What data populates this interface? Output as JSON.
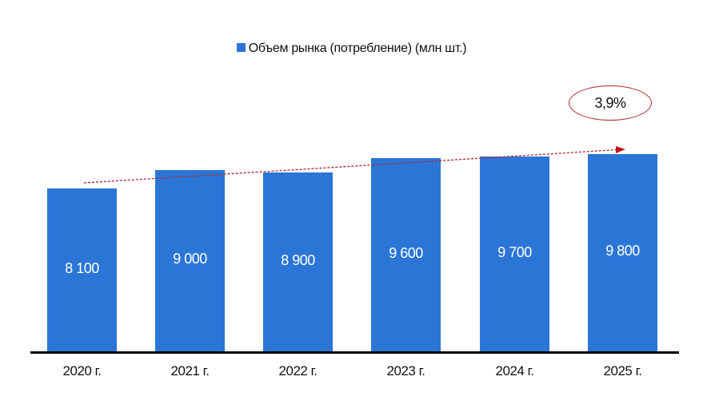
{
  "chart_data": {
    "type": "bar",
    "title": "",
    "legend": [
      "Объем рынка (потребление) (млн шт.)"
    ],
    "legend_position": "top",
    "categories": [
      "2020 г.",
      "2021 г.",
      "2022 г.",
      "2023 г.",
      "2024 г.",
      "2025 г."
    ],
    "series": [
      {
        "name": "Объем рынка (потребление) (млн шт.)",
        "values": [
          8100,
          9000,
          8900,
          9600,
          9700,
          9800
        ],
        "labels": [
          "8 100",
          "9 000",
          "8 900",
          "9 600",
          "9 700",
          "9 800"
        ],
        "color": "#2a75d6"
      }
    ],
    "annotations": [
      {
        "type": "trend-arrow",
        "style": "dashed",
        "color": "#b0282c",
        "from": "2020 г.",
        "to": "2025 г."
      },
      {
        "type": "ellipse-callout",
        "text": "3,9%",
        "color": "#b0282c"
      }
    ],
    "xlabel": "",
    "ylabel": "",
    "grid": false,
    "y_axis_visible": false
  },
  "legend": {
    "label": "Объем рынка (потребление) (млн шт.)"
  },
  "callout": {
    "growth_label": "3,9%"
  },
  "colors": {
    "bar": "#2a75d6",
    "trend": "#b0282c",
    "axis": "#000000"
  }
}
